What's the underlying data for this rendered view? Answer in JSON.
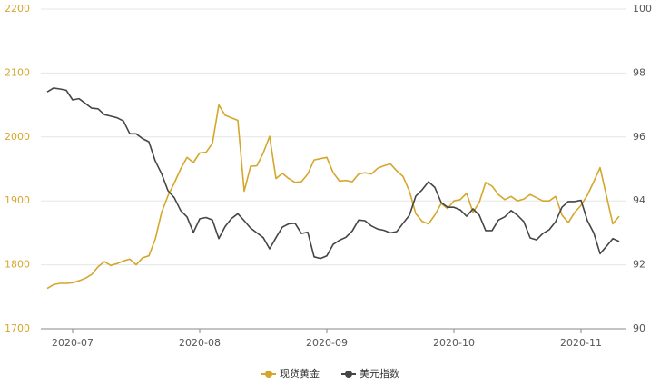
{
  "chart_data": {
    "type": "line",
    "categories": [
      null,
      null,
      null,
      null,
      "2020-07",
      null,
      null,
      null,
      null,
      null,
      null,
      null,
      null,
      null,
      null,
      null,
      null,
      null,
      null,
      null,
      null,
      null,
      null,
      null,
      "2020-08",
      null,
      null,
      null,
      null,
      null,
      null,
      null,
      null,
      null,
      null,
      null,
      null,
      null,
      null,
      null,
      null,
      null,
      null,
      null,
      "2020-09",
      null,
      null,
      null,
      null,
      null,
      null,
      null,
      null,
      null,
      null,
      null,
      null,
      null,
      null,
      null,
      null,
      null,
      null,
      null,
      "2020-10",
      null,
      null,
      null,
      null,
      null,
      null,
      null,
      null,
      null,
      null,
      null,
      null,
      null,
      null,
      null,
      null,
      null,
      null,
      null,
      "2020-11",
      null,
      null,
      null,
      null,
      null,
      null
    ],
    "series": [
      {
        "name": "现货黄金",
        "color": "#d4a72c",
        "axis": "y",
        "values": [
          1763,
          1769,
          1771,
          1771,
          1772,
          1775,
          1779,
          1785,
          1797,
          1805,
          1799,
          1802,
          1806,
          1809,
          1800,
          1811,
          1814,
          1840,
          1882,
          1908,
          1928,
          1950,
          1968,
          1960,
          1975,
          1976,
          1990,
          2050,
          2034,
          2030,
          2026,
          1915,
          1954,
          1955,
          1975,
          2001,
          1935,
          1943,
          1935,
          1929,
          1930,
          1942,
          1964,
          1966,
          1968,
          1944,
          1931,
          1932,
          1930,
          1942,
          1944,
          1942,
          1951,
          1955,
          1958,
          1947,
          1938,
          1915,
          1880,
          1868,
          1864,
          1878,
          1896,
          1888,
          1900,
          1902,
          1912,
          1882,
          1898,
          1929,
          1923,
          1910,
          1902,
          1907,
          1900,
          1903,
          1910,
          1905,
          1900,
          1900,
          1907,
          1878,
          1866,
          1882,
          1893,
          1909,
          1930,
          1952,
          1908,
          1864,
          1876
        ]
      },
      {
        "name": "美元指数",
        "color": "#454545",
        "axis": "y2",
        "values": [
          97.41,
          97.53,
          97.5,
          97.46,
          97.16,
          97.2,
          97.05,
          96.9,
          96.88,
          96.7,
          96.65,
          96.6,
          96.5,
          96.1,
          96.1,
          95.95,
          95.85,
          95.25,
          94.85,
          94.32,
          94.1,
          93.7,
          93.5,
          93.01,
          93.44,
          93.48,
          93.4,
          92.82,
          93.2,
          93.45,
          93.6,
          93.38,
          93.15,
          93.0,
          92.85,
          92.5,
          92.85,
          93.18,
          93.28,
          93.3,
          92.98,
          93.02,
          92.25,
          92.2,
          92.28,
          92.64,
          92.77,
          92.86,
          93.06,
          93.4,
          93.38,
          93.22,
          93.12,
          93.08,
          93.0,
          93.04,
          93.3,
          93.55,
          94.15,
          94.35,
          94.6,
          94.42,
          93.95,
          93.8,
          93.8,
          93.72,
          93.52,
          93.75,
          93.55,
          93.07,
          93.07,
          93.4,
          93.5,
          93.7,
          93.55,
          93.35,
          92.84,
          92.78,
          92.98,
          93.1,
          93.35,
          93.8,
          93.98,
          93.98,
          94.02,
          93.38,
          93.0,
          92.35,
          92.58,
          92.82,
          92.73
        ]
      }
    ],
    "ylim": [
      1700,
      2200
    ],
    "yticks": [
      1700,
      1800,
      1900,
      2000,
      2100,
      2200
    ],
    "y2lim": [
      90,
      100
    ],
    "y2ticks": [
      90,
      92,
      94,
      96,
      98,
      100
    ],
    "grid": true,
    "legend": "bottom"
  }
}
